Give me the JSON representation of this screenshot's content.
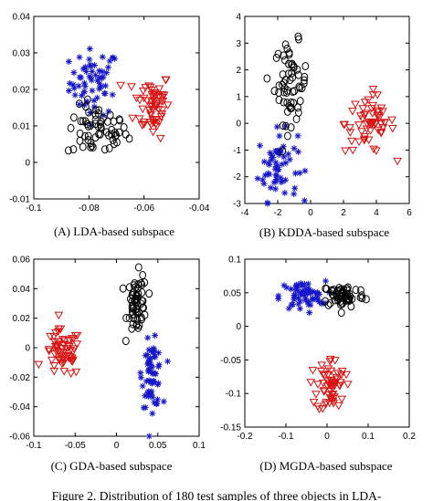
{
  "figure_caption": "Figure 2. Distribution of 180 test samples of three objects in LDA-",
  "colors": {
    "object_1": "#1515c8",
    "object_2": "#000000",
    "object_3": "#d81010"
  },
  "chart_data": [
    {
      "type": "scatter",
      "caption": "(A) LDA-based subspace",
      "xlim": [
        -0.1,
        -0.04
      ],
      "ylim": [
        -0.01,
        0.04
      ],
      "xticks": [
        -0.1,
        -0.08,
        -0.06,
        -0.04
      ],
      "yticks": [
        -0.01,
        0,
        0.01,
        0.02,
        0.03,
        0.04
      ],
      "xtick_labels": [
        "-0.1",
        "-0.08",
        "-0.06",
        "-0.04"
      ],
      "ytick_labels": [
        "-0.01",
        "0",
        "0.01",
        "0.02",
        "0.03",
        "0.04"
      ],
      "grid": false,
      "clusters": [
        {
          "marker": "plus",
          "color": "#1515c8",
          "n": 60,
          "center": [
            -0.078,
            0.022
          ],
          "spread": [
            0.0045,
            0.0045
          ]
        },
        {
          "marker": "circle",
          "color": "#000000",
          "n": 60,
          "center": [
            -0.077,
            0.0085
          ],
          "spread": [
            0.0055,
            0.0035
          ]
        },
        {
          "marker": "triangle",
          "color": "#d81010",
          "n": 60,
          "center": [
            -0.057,
            0.016
          ],
          "spread": [
            0.0033,
            0.0045
          ]
        }
      ]
    },
    {
      "type": "scatter",
      "caption": "(B) KDDA-based subspace",
      "xlim": [
        -4,
        6
      ],
      "ylim": [
        -3,
        4
      ],
      "xticks": [
        -4,
        -2,
        0,
        2,
        4,
        6
      ],
      "yticks": [
        -3,
        -2,
        -1,
        0,
        1,
        2,
        3,
        4
      ],
      "xtick_labels": [
        "-4",
        "-2",
        "0",
        "2",
        "4",
        "6"
      ],
      "ytick_labels": [
        "-3",
        "-2",
        "-1",
        "0",
        "1",
        "2",
        "3",
        "4"
      ],
      "grid": false,
      "clusters": [
        {
          "marker": "plus",
          "color": "#1515c8",
          "n": 60,
          "center": [
            -2.0,
            -1.6
          ],
          "spread": [
            0.6,
            0.65
          ]
        },
        {
          "marker": "circle",
          "color": "#000000",
          "n": 60,
          "center": [
            -1.2,
            1.5
          ],
          "spread": [
            0.5,
            0.75
          ]
        },
        {
          "marker": "triangle",
          "color": "#d81010",
          "n": 60,
          "center": [
            3.6,
            0.0
          ],
          "spread": [
            0.75,
            0.55
          ]
        }
      ]
    },
    {
      "type": "scatter",
      "caption": "(C) GDA-based subspace",
      "xlim": [
        -0.1,
        0.1
      ],
      "ylim": [
        -0.06,
        0.06
      ],
      "xticks": [
        -0.1,
        -0.05,
        0,
        0.05,
        0.1
      ],
      "yticks": [
        -0.06,
        -0.04,
        -0.02,
        0,
        0.02,
        0.04,
        0.06
      ],
      "xtick_labels": [
        "-0.1",
        "-0.05",
        "0",
        "0.05",
        "0.1"
      ],
      "ytick_labels": [
        "-0.06",
        "-0.04",
        "-0.02",
        "0",
        "0.02",
        "0.04",
        "0.06"
      ],
      "grid": false,
      "clusters": [
        {
          "marker": "triangle",
          "color": "#d81010",
          "n": 60,
          "center": [
            -0.065,
            -0.004
          ],
          "spread": [
            0.011,
            0.008
          ]
        },
        {
          "marker": "circle",
          "color": "#000000",
          "n": 60,
          "center": [
            0.025,
            0.03
          ],
          "spread": [
            0.006,
            0.01
          ]
        },
        {
          "marker": "plus",
          "color": "#1515c8",
          "n": 60,
          "center": [
            0.043,
            -0.018
          ],
          "spread": [
            0.006,
            0.011
          ]
        }
      ]
    },
    {
      "type": "scatter",
      "caption": "(D) MGDA-based subspace",
      "xlim": [
        -0.2,
        0.2
      ],
      "ylim": [
        -0.15,
        0.1
      ],
      "xticks": [
        -0.2,
        -0.1,
        0,
        0.1,
        0.2
      ],
      "yticks": [
        -0.15,
        -0.1,
        -0.05,
        0,
        0.05,
        0.1
      ],
      "xtick_labels": [
        "-0.2",
        "-0.1",
        "0",
        "0.1",
        "0.2"
      ],
      "ytick_labels": [
        "-0.15",
        "-0.1",
        "-0.05",
        "0",
        "0.05",
        "0.1"
      ],
      "grid": false,
      "clusters": [
        {
          "marker": "plus",
          "color": "#1515c8",
          "n": 60,
          "center": [
            -0.06,
            0.045
          ],
          "spread": [
            0.028,
            0.011
          ]
        },
        {
          "marker": "circle",
          "color": "#000000",
          "n": 60,
          "center": [
            0.04,
            0.046
          ],
          "spread": [
            0.026,
            0.009
          ]
        },
        {
          "marker": "triangle",
          "color": "#d81010",
          "n": 60,
          "center": [
            0.01,
            -0.088
          ],
          "spread": [
            0.017,
            0.021
          ]
        }
      ]
    }
  ]
}
